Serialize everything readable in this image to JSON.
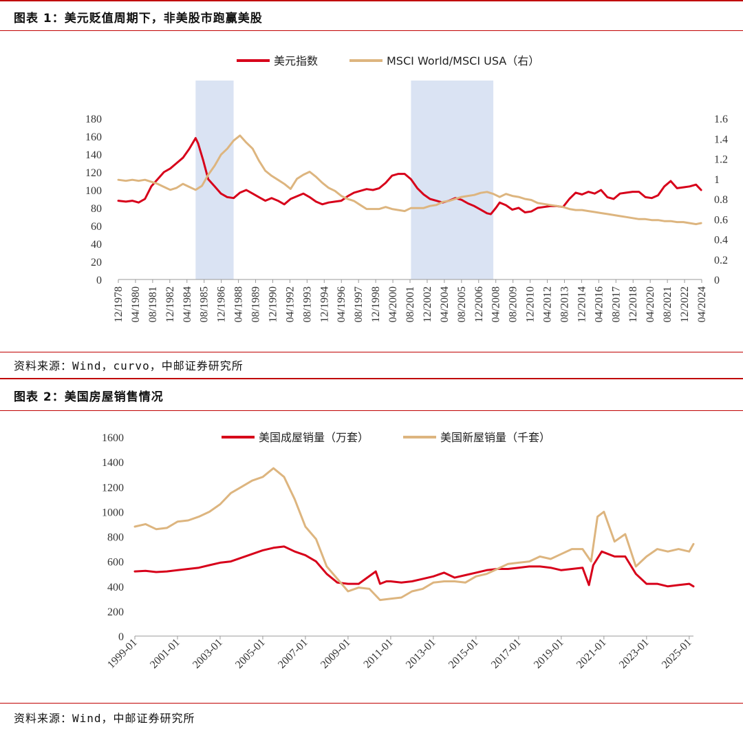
{
  "figure1": {
    "title": "图表 1：美元贬值周期下，非美股市跑赢美股",
    "source": "资料来源：Wind，curvo，中邮证券研究所"
  },
  "figure2": {
    "title": "图表 2：美国房屋销售情况",
    "source": "资料来源：Wind，中邮证券研究所"
  },
  "chart_data": [
    {
      "type": "line",
      "title": "",
      "ylim_left": [
        0,
        180
      ],
      "ylim_right": [
        0,
        1.6
      ],
      "yticks_left": [
        "0",
        "20",
        "40",
        "60",
        "80",
        "100",
        "120",
        "140",
        "160",
        "180"
      ],
      "yticks_right": [
        "0",
        "0.2",
        "0.4",
        "0.6",
        "0.8",
        "1",
        "1.2",
        "1.4",
        "1.6"
      ],
      "xticks": [
        "12/1978",
        "04/1980",
        "08/1981",
        "12/1982",
        "04/1984",
        "08/1985",
        "12/1986",
        "04/1988",
        "08/1989",
        "12/1990",
        "04/1992",
        "08/1993",
        "12/1994",
        "04/1996",
        "08/1997",
        "12/1998",
        "04/2000",
        "08/2001",
        "12/2002",
        "04/2004",
        "08/2005",
        "12/2006",
        "04/2008",
        "08/2009",
        "12/2010",
        "04/2012",
        "08/2013",
        "12/2014",
        "04/2016",
        "08/2017",
        "12/2018",
        "04/2020",
        "08/2021",
        "12/2022",
        "04/2024"
      ],
      "legend_position": "top",
      "shaded_periods": [
        [
          1985.0,
          1988.0
        ],
        [
          2002.0,
          2008.5
        ]
      ],
      "shade_color": "#dae3f3",
      "series": [
        {
          "name": "美元指数",
          "axis": "left",
          "color": "#d7001a",
          "x": [
            1978.9,
            1979.5,
            1980.0,
            1980.5,
            1981.0,
            1981.5,
            1982.0,
            1982.5,
            1983.0,
            1983.5,
            1984.0,
            1984.5,
            1985.0,
            1985.2,
            1985.6,
            1986.0,
            1986.5,
            1987.0,
            1987.5,
            1988.0,
            1988.5,
            1989.0,
            1989.5,
            1990.0,
            1990.5,
            1991.0,
            1991.5,
            1992.0,
            1992.5,
            1993.0,
            1993.5,
            1994.0,
            1994.5,
            1995.0,
            1995.5,
            1996.0,
            1996.5,
            1997.0,
            1997.5,
            1998.0,
            1998.5,
            1999.0,
            1999.5,
            2000.0,
            2000.5,
            2001.0,
            2001.5,
            2002.0,
            2002.5,
            2003.0,
            2003.5,
            2004.0,
            2004.5,
            2005.0,
            2005.5,
            2006.0,
            2006.5,
            2007.0,
            2007.5,
            2008.0,
            2008.3,
            2008.7,
            2009.0,
            2009.5,
            2010.0,
            2010.5,
            2011.0,
            2011.5,
            2012.0,
            2012.5,
            2013.0,
            2013.5,
            2014.0,
            2014.5,
            2015.0,
            2015.5,
            2016.0,
            2016.5,
            2017.0,
            2017.5,
            2018.0,
            2018.5,
            2019.0,
            2019.5,
            2020.0,
            2020.5,
            2021.0,
            2021.5,
            2022.0,
            2022.5,
            2023.0,
            2023.5,
            2024.0,
            2024.5,
            2024.9
          ],
          "values": [
            88,
            87,
            88,
            86,
            90,
            104,
            112,
            120,
            124,
            130,
            136,
            146,
            158,
            152,
            133,
            112,
            104,
            96,
            92,
            91,
            97,
            100,
            96,
            92,
            88,
            91,
            88,
            84,
            90,
            93,
            96,
            92,
            87,
            84,
            86,
            87,
            88,
            93,
            97,
            99,
            101,
            100,
            102,
            108,
            116,
            118,
            118,
            112,
            102,
            95,
            90,
            88,
            86,
            88,
            91,
            89,
            85,
            82,
            78,
            74,
            73,
            80,
            86,
            83,
            78,
            80,
            75,
            76,
            80,
            81,
            82,
            82,
            81,
            90,
            97,
            95,
            98,
            96,
            100,
            92,
            90,
            96,
            97,
            98,
            98,
            92,
            91,
            94,
            104,
            110,
            102,
            103,
            104,
            106,
            100
          ]
        },
        {
          "name": "MSCI World/MSCI USA（右）",
          "axis": "right",
          "color": "#ddb57f",
          "x": [
            1978.9,
            1979.5,
            1980.0,
            1980.5,
            1981.0,
            1981.5,
            1982.0,
            1982.5,
            1983.0,
            1983.5,
            1984.0,
            1984.5,
            1985.0,
            1985.5,
            1986.0,
            1986.5,
            1987.0,
            1987.5,
            1988.0,
            1988.5,
            1989.0,
            1989.5,
            1990.0,
            1990.5,
            1991.0,
            1991.5,
            1992.0,
            1992.5,
            1993.0,
            1993.5,
            1994.0,
            1994.5,
            1995.0,
            1995.5,
            1996.0,
            1996.5,
            1997.0,
            1997.5,
            1998.0,
            1998.5,
            1999.0,
            1999.5,
            2000.0,
            2000.5,
            2001.0,
            2001.5,
            2002.0,
            2002.5,
            2003.0,
            2003.5,
            2004.0,
            2004.5,
            2005.0,
            2005.5,
            2006.0,
            2006.5,
            2007.0,
            2007.5,
            2008.0,
            2008.5,
            2009.0,
            2009.5,
            2010.0,
            2010.5,
            2011.0,
            2011.5,
            2012.0,
            2012.5,
            2013.0,
            2013.5,
            2014.0,
            2014.5,
            2015.0,
            2015.5,
            2016.0,
            2016.5,
            2017.0,
            2017.5,
            2018.0,
            2018.5,
            2019.0,
            2019.5,
            2020.0,
            2020.5,
            2021.0,
            2021.5,
            2022.0,
            2022.5,
            2023.0,
            2023.5,
            2024.0,
            2024.5,
            2024.9
          ],
          "values": [
            0.99,
            0.98,
            0.99,
            0.98,
            0.99,
            0.97,
            0.95,
            0.92,
            0.89,
            0.91,
            0.95,
            0.92,
            0.89,
            0.93,
            1.04,
            1.13,
            1.24,
            1.3,
            1.38,
            1.43,
            1.36,
            1.3,
            1.18,
            1.08,
            1.03,
            0.99,
            0.95,
            0.9,
            1.0,
            1.04,
            1.07,
            1.02,
            0.96,
            0.91,
            0.88,
            0.83,
            0.8,
            0.78,
            0.74,
            0.7,
            0.7,
            0.7,
            0.72,
            0.7,
            0.69,
            0.68,
            0.71,
            0.71,
            0.71,
            0.73,
            0.74,
            0.77,
            0.78,
            0.8,
            0.82,
            0.83,
            0.84,
            0.86,
            0.87,
            0.85,
            0.82,
            0.85,
            0.83,
            0.82,
            0.8,
            0.79,
            0.76,
            0.75,
            0.74,
            0.73,
            0.72,
            0.7,
            0.69,
            0.69,
            0.68,
            0.67,
            0.66,
            0.65,
            0.64,
            0.63,
            0.62,
            0.61,
            0.6,
            0.6,
            0.59,
            0.59,
            0.58,
            0.58,
            0.57,
            0.57,
            0.56,
            0.55,
            0.56
          ]
        }
      ]
    },
    {
      "type": "line",
      "title": "",
      "ylim": [
        0,
        1600
      ],
      "yticks": [
        "0",
        "200",
        "400",
        "600",
        "800",
        "1000",
        "1200",
        "1400",
        "1600"
      ],
      "xticks": [
        "1999-01",
        "2001-01",
        "2003-01",
        "2005-01",
        "2007-01",
        "2009-01",
        "2011-01",
        "2013-01",
        "2015-01",
        "2017-01",
        "2019-01",
        "2021-01",
        "2023-01",
        "2025-01"
      ],
      "legend_position": "top",
      "series": [
        {
          "name": "美国成屋销量（万套）",
          "color": "#d7001a",
          "x": [
            1999.0,
            1999.5,
            2000.0,
            2000.5,
            2001.0,
            2001.5,
            2002.0,
            2002.5,
            2003.0,
            2003.5,
            2004.0,
            2004.5,
            2005.0,
            2005.5,
            2006.0,
            2006.5,
            2007.0,
            2007.5,
            2008.0,
            2008.5,
            2009.0,
            2009.5,
            2009.9,
            2010.3,
            2010.5,
            2010.8,
            2011.0,
            2011.5,
            2012.0,
            2012.5,
            2013.0,
            2013.5,
            2014.0,
            2014.5,
            2015.0,
            2015.5,
            2016.0,
            2016.5,
            2017.0,
            2017.5,
            2018.0,
            2018.5,
            2019.0,
            2019.5,
            2020.0,
            2020.3,
            2020.5,
            2020.9,
            2021.5,
            2022.0,
            2022.5,
            2023.0,
            2023.5,
            2024.0,
            2024.5,
            2025.0,
            2025.2
          ],
          "values": [
            520,
            525,
            515,
            520,
            530,
            540,
            550,
            570,
            590,
            600,
            630,
            660,
            690,
            710,
            720,
            680,
            650,
            600,
            500,
            430,
            420,
            420,
            470,
            520,
            420,
            440,
            440,
            430,
            440,
            460,
            480,
            510,
            470,
            490,
            510,
            530,
            540,
            540,
            550,
            560,
            560,
            550,
            530,
            540,
            550,
            410,
            570,
            680,
            640,
            640,
            500,
            420,
            420,
            400,
            410,
            420,
            400
          ]
        },
        {
          "name": "美国新屋销量（千套）",
          "color": "#ddb57f",
          "x": [
            1999.0,
            1999.5,
            2000.0,
            2000.5,
            2001.0,
            2001.5,
            2002.0,
            2002.5,
            2003.0,
            2003.5,
            2004.0,
            2004.5,
            2005.0,
            2005.5,
            2006.0,
            2006.5,
            2007.0,
            2007.5,
            2008.0,
            2008.5,
            2009.0,
            2009.5,
            2010.0,
            2010.5,
            2011.0,
            2011.5,
            2012.0,
            2012.5,
            2013.0,
            2013.5,
            2014.0,
            2014.5,
            2015.0,
            2015.5,
            2016.0,
            2016.5,
            2017.0,
            2017.5,
            2018.0,
            2018.5,
            2019.0,
            2019.5,
            2020.0,
            2020.4,
            2020.7,
            2021.0,
            2021.5,
            2022.0,
            2022.5,
            2023.0,
            2023.5,
            2024.0,
            2024.5,
            2025.0,
            2025.2
          ],
          "values": [
            880,
            900,
            860,
            870,
            920,
            930,
            960,
            1000,
            1060,
            1150,
            1200,
            1250,
            1280,
            1350,
            1280,
            1100,
            880,
            780,
            560,
            460,
            360,
            390,
            380,
            290,
            300,
            310,
            360,
            380,
            430,
            440,
            440,
            430,
            480,
            500,
            540,
            580,
            590,
            600,
            640,
            620,
            660,
            700,
            700,
            600,
            960,
            1000,
            760,
            820,
            560,
            640,
            700,
            680,
            700,
            680,
            740
          ]
        }
      ]
    }
  ]
}
